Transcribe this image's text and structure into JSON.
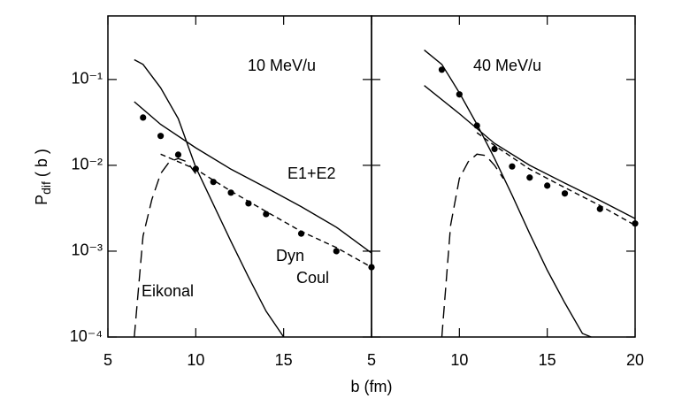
{
  "chart_data": [
    {
      "type": "line",
      "log_y": true,
      "ylabel": [
        "P",
        "dif",
        " ( b )"
      ],
      "xlabel": "b (fm)",
      "xlim": [
        5,
        20
      ],
      "xticks": [
        5,
        10,
        15
      ],
      "ylim": [
        0.0001,
        0.55
      ],
      "yticks": [
        {
          "value": 0.1,
          "label": "10⁻¹"
        },
        {
          "value": 0.01,
          "label": "10⁻²"
        },
        {
          "value": 0.001,
          "label": "10⁻³"
        },
        {
          "value": 0.0001,
          "label": "10⁻⁴"
        }
      ],
      "annotations": [
        "10 MeV/u",
        "E1+E2",
        "Dyn",
        "Coul",
        "Eikonal"
      ],
      "series": [
        {
          "color": "#000000",
          "dash": "solid",
          "x": [
            6.5,
            8,
            10,
            12,
            14,
            16,
            18,
            20
          ],
          "values": [
            0.055,
            0.03,
            0.016,
            0.009,
            0.0055,
            0.0033,
            0.0019,
            0.00095
          ]
        },
        {
          "color": "#000000",
          "dash": "solid",
          "x": [
            6.5,
            7,
            8,
            9,
            10,
            11,
            12,
            13,
            14,
            15
          ],
          "values": [
            0.17,
            0.15,
            0.08,
            0.035,
            0.0095,
            0.0035,
            0.0013,
            0.0005,
            0.0002,
            0.0001
          ]
        },
        {
          "color": "#000000",
          "dash": "short",
          "x": [
            8,
            10,
            12,
            14,
            16,
            18,
            20
          ],
          "values": [
            0.0135,
            0.009,
            0.005,
            0.0029,
            0.0017,
            0.0011,
            0.00065
          ]
        },
        {
          "color": "#000000",
          "dash": "long",
          "x": [
            6.5,
            7,
            7.5,
            8,
            8.5,
            9,
            9.5,
            10
          ],
          "values": [
            0.0001,
            0.0015,
            0.004,
            0.008,
            0.011,
            0.012,
            0.011,
            0.008
          ]
        },
        {
          "color": "#000000",
          "dash": "none",
          "marker": true,
          "x": [
            7,
            8,
            9,
            10,
            11,
            12,
            13,
            14,
            16,
            18,
            20
          ],
          "values": [
            0.036,
            0.022,
            0.0133,
            0.0091,
            0.0064,
            0.0048,
            0.0036,
            0.0027,
            0.0016,
            0.001,
            0.00065
          ]
        }
      ]
    },
    {
      "type": "line",
      "log_y": true,
      "xlim": [
        5,
        20
      ],
      "xticks": [
        5,
        10,
        15,
        20
      ],
      "ylim": [
        0.0001,
        0.55
      ],
      "yticks": [
        0.1,
        0.01,
        0.001,
        0.0001
      ],
      "annotations": [
        "40 MeV/u"
      ],
      "series": [
        {
          "color": "#000000",
          "dash": "solid",
          "x": [
            8,
            9,
            10,
            11,
            12,
            13,
            14,
            15,
            16,
            17,
            17.5
          ],
          "values": [
            0.22,
            0.15,
            0.07,
            0.03,
            0.012,
            0.0045,
            0.0016,
            0.0006,
            0.00025,
            0.00011,
            0.0001
          ]
        },
        {
          "color": "#000000",
          "dash": "solid",
          "x": [
            8,
            10,
            12,
            14,
            16,
            18,
            20
          ],
          "values": [
            0.085,
            0.04,
            0.018,
            0.01,
            0.0062,
            0.0039,
            0.0024
          ]
        },
        {
          "color": "#000000",
          "dash": "short",
          "x": [
            11,
            12,
            14,
            16,
            18,
            20
          ],
          "values": [
            0.024,
            0.017,
            0.009,
            0.0055,
            0.0034,
            0.002
          ]
        },
        {
          "color": "#000000",
          "dash": "long",
          "x": [
            9,
            9.5,
            10,
            10.5,
            11,
            11.5,
            12,
            12.5
          ],
          "values": [
            0.0001,
            0.002,
            0.007,
            0.011,
            0.0135,
            0.013,
            0.01,
            0.007
          ]
        },
        {
          "color": "#000000",
          "dash": "none",
          "marker": true,
          "x": [
            9,
            10,
            11,
            12,
            13,
            14,
            15,
            16,
            18,
            20
          ],
          "values": [
            0.13,
            0.067,
            0.029,
            0.0155,
            0.0097,
            0.0072,
            0.0058,
            0.0047,
            0.0031,
            0.0021
          ]
        }
      ]
    }
  ]
}
